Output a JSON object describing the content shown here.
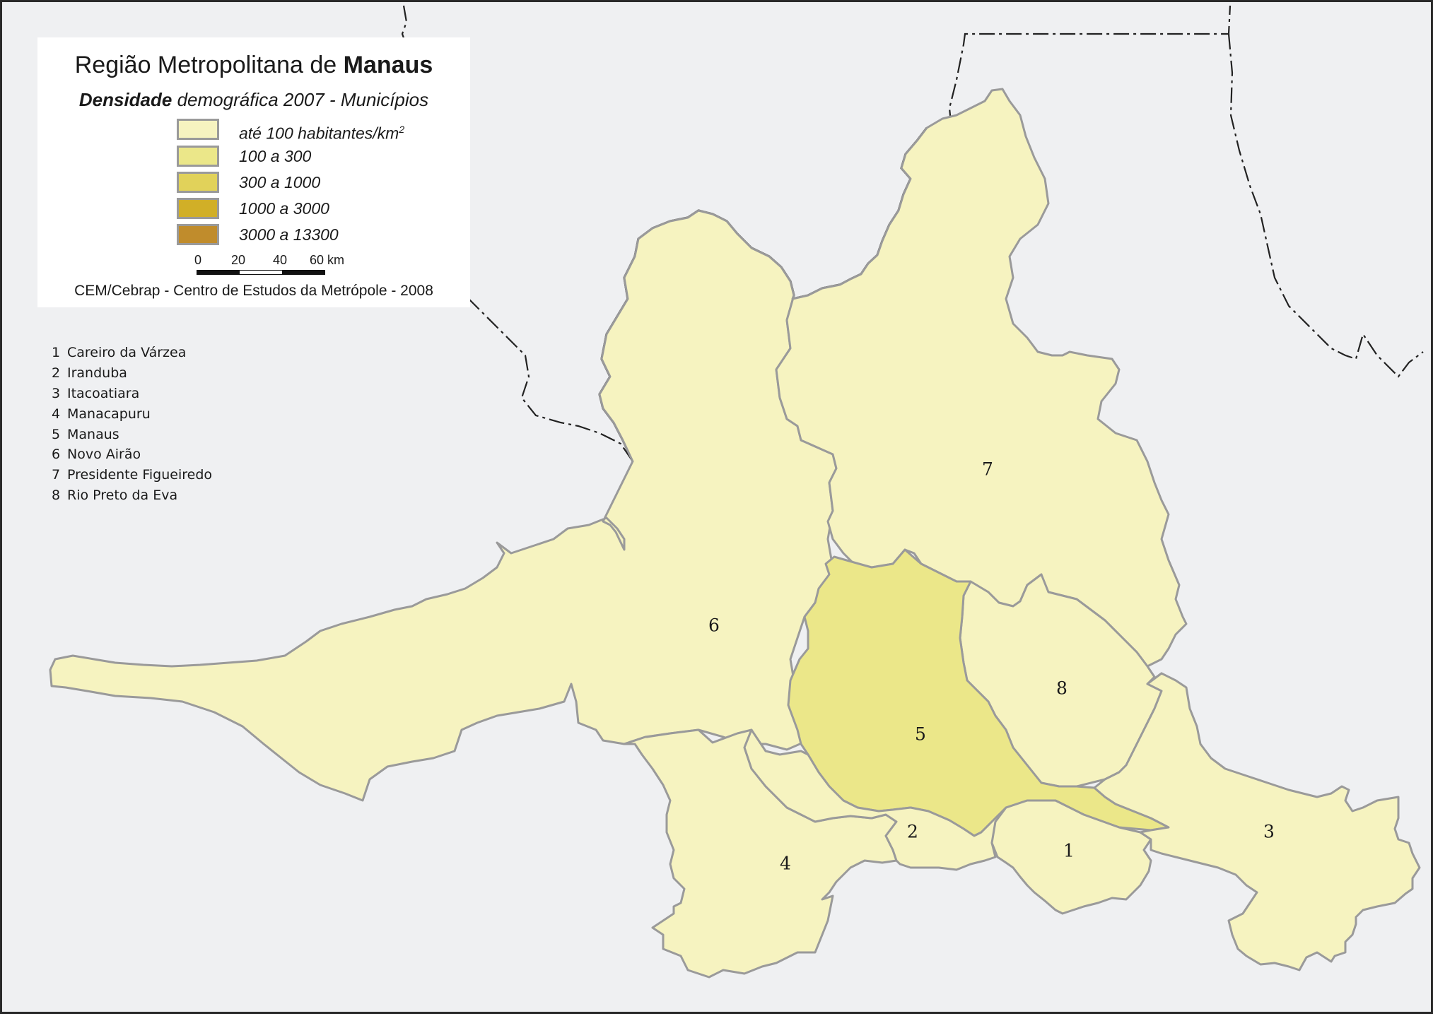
{
  "legend": {
    "title_prefix": "Região Metropolitana de ",
    "title_bold": "Manaus",
    "subtitle_bold": "Densidade",
    "subtitle_rest": " demográfica 2007 - Municípios",
    "classes": [
      {
        "label": "até 100 habitantes/km",
        "sup": "2",
        "color": "#f6f3c0"
      },
      {
        "label": "100 a 300",
        "sup": "",
        "color": "#ebe789"
      },
      {
        "label": "300 a 1000",
        "sup": "",
        "color": "#e1d25a"
      },
      {
        "label": "1000 a 3000",
        "sup": "",
        "color": "#d1af27"
      },
      {
        "label": "3000 a 13300",
        "sup": "",
        "color": "#c08c2c"
      }
    ],
    "scale": {
      "ticks": [
        "0",
        "20",
        "40",
        "60 km"
      ]
    },
    "credit": "CEM/Cebrap - Centro de Estudos da Metrópole - 2008"
  },
  "municipalities": [
    {
      "number": "1",
      "name": "Careiro da Várzea",
      "density_class": 0
    },
    {
      "number": "2",
      "name": "Iranduba",
      "density_class": 0
    },
    {
      "number": "3",
      "name": "Itacoatiara",
      "density_class": 0
    },
    {
      "number": "4",
      "name": "Manacapuru",
      "density_class": 0
    },
    {
      "number": "5",
      "name": "Manaus",
      "density_class": 1
    },
    {
      "number": "6",
      "name": "Novo Airão",
      "density_class": 0
    },
    {
      "number": "7",
      "name": "Presidente Figueiredo",
      "density_class": 0
    },
    {
      "number": "8",
      "name": "Rio Preto da Eva",
      "density_class": 0
    }
  ],
  "colors": {
    "background": "#eff0f2",
    "boundary": "#9a9a9a",
    "state_border": "#222222"
  }
}
